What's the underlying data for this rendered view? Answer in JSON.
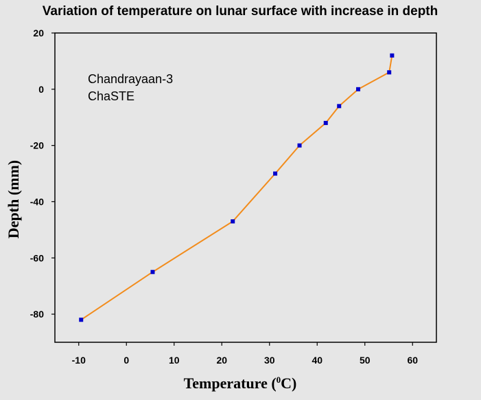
{
  "chart_data": {
    "type": "line",
    "title": "Variation of temperature on lunar surface with increase in depth",
    "xlabel_main": "Temperature (",
    "xlabel_sup": "0",
    "xlabel_end": "C)",
    "ylabel": "Depth (mm)",
    "annotations": [
      "Chandrayaan-3",
      "ChaSTE"
    ],
    "xlim": [
      -15,
      65
    ],
    "ylim": [
      -90,
      20
    ],
    "xticks": [
      -10,
      0,
      10,
      20,
      30,
      40,
      50,
      60
    ],
    "yticks": [
      20,
      0,
      -20,
      -40,
      -60,
      -80
    ],
    "grid": false,
    "line_color": "#f28c1c",
    "marker_color": "#0000cc",
    "series": [
      {
        "x": [
          -9.5,
          5.5,
          22.3,
          31.2,
          36.3,
          41.8,
          44.6,
          48.6,
          55.1,
          55.7
        ],
        "y": [
          -82,
          -65,
          -47,
          -30,
          -20,
          -12,
          -6,
          0,
          6,
          12
        ]
      }
    ]
  }
}
